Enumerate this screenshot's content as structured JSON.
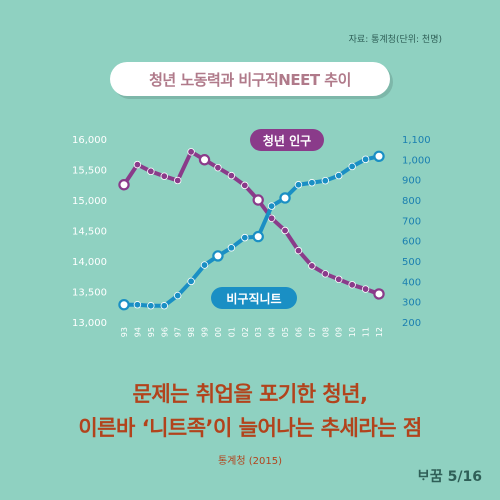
{
  "source_note": "자료: 통계청(단위: 천명)",
  "headline": {
    "line1": "문제는 취업을 포기한 청년,",
    "line2": "이른바 ‘니트족’이 늘어나는 추세라는 점"
  },
  "credit": "통계청 (2015)",
  "page_indicator": "ᄇᆞ꿈 5/16",
  "colors": {
    "background": "#8fd1c1",
    "youth_population": "#8a3b8a",
    "irregular_neet": "#1a8fc4",
    "headline": "#b2431c"
  },
  "chart_data": {
    "type": "line",
    "title": "청년 노동력과 비구직NEET 추이",
    "categories": [
      "93",
      "94",
      "95",
      "96",
      "97",
      "98",
      "99",
      "00",
      "01",
      "02",
      "03",
      "04",
      "05",
      "06",
      "07",
      "08",
      "09",
      "10",
      "11",
      "12"
    ],
    "left_axis": {
      "range": [
        13000,
        16000
      ],
      "ticks": [
        "13,000",
        "13,500",
        "14,000",
        "14,500",
        "15,000",
        "15,500",
        "16,000"
      ]
    },
    "right_axis": {
      "range": [
        200,
        1100
      ],
      "ticks": [
        "200",
        "300",
        "400",
        "500",
        "600",
        "700",
        "800",
        "900",
        "1,000",
        "1,100"
      ]
    },
    "series": [
      {
        "name": "청년 인구",
        "axis": "left",
        "values": [
          15250,
          15580,
          15470,
          15390,
          15320,
          15790,
          15660,
          15530,
          15400,
          15240,
          15000,
          14700,
          14500,
          14170,
          13920,
          13790,
          13700,
          13610,
          13540,
          13460
        ],
        "highlight": [
          0,
          6,
          10,
          19
        ]
      },
      {
        "name": "비구직니트",
        "axis": "right",
        "values": [
          285,
          285,
          280,
          280,
          330,
          400,
          480,
          525,
          565,
          615,
          620,
          770,
          810,
          875,
          885,
          895,
          920,
          965,
          1000,
          1015
        ],
        "highlight": [
          0,
          7,
          10,
          12,
          19
        ]
      }
    ],
    "grid": false,
    "legend": "inline-labels"
  }
}
